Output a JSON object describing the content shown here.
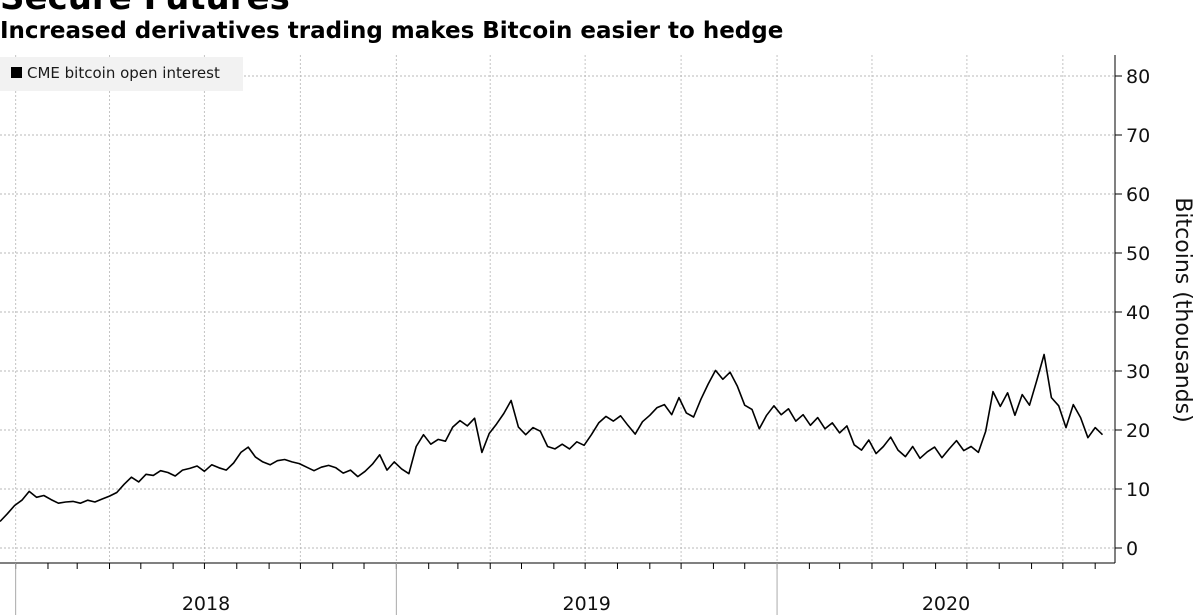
{
  "headline": "Secure Futures",
  "subtitle": "Increased derivatives trading makes Bitcoin easier to hedge",
  "chart_data": {
    "type": "line",
    "title": "Increased derivatives trading makes Bitcoin easier to hedge",
    "xlabel": "",
    "ylabel": "Bitcoins (thousands)",
    "ylim": [
      0,
      80
    ],
    "xlim": [
      "2017-12-17",
      "2020-11-20"
    ],
    "y_ticks": [
      "0",
      "10",
      "20",
      "30",
      "40",
      "50",
      "60",
      "70",
      "80"
    ],
    "x_tick_labels": [
      "2018",
      "2019",
      "2020"
    ],
    "grid": true,
    "legend_position": "top-left",
    "y_axis_side": "right",
    "line_color": "#000000",
    "series": [
      {
        "name": "CME bitcoin open interest",
        "points": [
          [
            "2017-12-17",
            4.5
          ],
          [
            "2017-12-24",
            5.8
          ],
          [
            "2017-12-31",
            7.2
          ],
          [
            "2018-01-07",
            8.1
          ],
          [
            "2018-01-14",
            9.6
          ],
          [
            "2018-01-21",
            8.6
          ],
          [
            "2018-01-28",
            8.9
          ],
          [
            "2018-02-04",
            8.2
          ],
          [
            "2018-02-11",
            7.6
          ],
          [
            "2018-02-18",
            7.8
          ],
          [
            "2018-02-25",
            7.9
          ],
          [
            "2018-03-04",
            7.6
          ],
          [
            "2018-03-11",
            8.1
          ],
          [
            "2018-03-18",
            7.8
          ],
          [
            "2018-03-25",
            8.3
          ],
          [
            "2018-04-01",
            8.8
          ],
          [
            "2018-04-08",
            9.4
          ],
          [
            "2018-04-15",
            10.8
          ],
          [
            "2018-04-22",
            12.0
          ],
          [
            "2018-04-29",
            11.2
          ],
          [
            "2018-05-06",
            12.5
          ],
          [
            "2018-05-13",
            12.3
          ],
          [
            "2018-05-20",
            13.1
          ],
          [
            "2018-05-27",
            12.8
          ],
          [
            "2018-06-03",
            12.2
          ],
          [
            "2018-06-10",
            13.2
          ],
          [
            "2018-06-17",
            13.5
          ],
          [
            "2018-06-24",
            13.9
          ],
          [
            "2018-07-01",
            13.0
          ],
          [
            "2018-07-08",
            14.1
          ],
          [
            "2018-07-15",
            13.6
          ],
          [
            "2018-07-22",
            13.2
          ],
          [
            "2018-07-29",
            14.4
          ],
          [
            "2018-08-05",
            16.2
          ],
          [
            "2018-08-12",
            17.1
          ],
          [
            "2018-08-19",
            15.4
          ],
          [
            "2018-08-26",
            14.6
          ],
          [
            "2018-09-02",
            14.1
          ],
          [
            "2018-09-09",
            14.8
          ],
          [
            "2018-09-16",
            15.0
          ],
          [
            "2018-09-23",
            14.6
          ],
          [
            "2018-09-30",
            14.3
          ],
          [
            "2018-10-07",
            13.7
          ],
          [
            "2018-10-14",
            13.1
          ],
          [
            "2018-10-21",
            13.7
          ],
          [
            "2018-10-28",
            14.0
          ],
          [
            "2018-11-04",
            13.6
          ],
          [
            "2018-11-11",
            12.7
          ],
          [
            "2018-11-18",
            13.2
          ],
          [
            "2018-11-25",
            12.1
          ],
          [
            "2018-12-02",
            13.0
          ],
          [
            "2018-12-09",
            14.2
          ],
          [
            "2018-12-16",
            15.8
          ],
          [
            "2018-12-23",
            13.2
          ],
          [
            "2018-12-30",
            14.6
          ],
          [
            "2019-01-06",
            13.4
          ],
          [
            "2019-01-13",
            12.6
          ],
          [
            "2019-01-20",
            17.2
          ],
          [
            "2019-01-27",
            19.2
          ],
          [
            "2019-02-03",
            17.6
          ],
          [
            "2019-02-10",
            18.4
          ],
          [
            "2019-02-17",
            18.1
          ],
          [
            "2019-02-24",
            20.5
          ],
          [
            "2019-03-03",
            21.6
          ],
          [
            "2019-03-10",
            20.7
          ],
          [
            "2019-03-17",
            22.0
          ],
          [
            "2019-03-24",
            16.2
          ],
          [
            "2019-03-31",
            19.4
          ],
          [
            "2019-04-07",
            21.0
          ],
          [
            "2019-04-14",
            22.8
          ],
          [
            "2019-04-21",
            25.0
          ],
          [
            "2019-04-28",
            20.5
          ],
          [
            "2019-05-05",
            19.2
          ],
          [
            "2019-05-12",
            20.4
          ],
          [
            "2019-05-19",
            19.8
          ],
          [
            "2019-05-26",
            17.2
          ],
          [
            "2019-06-02",
            16.8
          ],
          [
            "2019-06-09",
            17.6
          ],
          [
            "2019-06-16",
            16.8
          ],
          [
            "2019-06-23",
            18.0
          ],
          [
            "2019-06-30",
            17.4
          ],
          [
            "2019-07-07",
            19.2
          ],
          [
            "2019-07-14",
            21.2
          ],
          [
            "2019-07-21",
            22.3
          ],
          [
            "2019-07-28",
            21.5
          ],
          [
            "2019-08-04",
            22.4
          ],
          [
            "2019-08-11",
            20.8
          ],
          [
            "2019-08-18",
            19.3
          ],
          [
            "2019-08-25",
            21.4
          ],
          [
            "2019-09-01",
            22.5
          ],
          [
            "2019-09-08",
            23.8
          ],
          [
            "2019-09-15",
            24.3
          ],
          [
            "2019-09-22",
            22.6
          ],
          [
            "2019-09-29",
            25.5
          ],
          [
            "2019-10-06",
            22.9
          ],
          [
            "2019-10-13",
            22.2
          ],
          [
            "2019-10-20",
            25.2
          ],
          [
            "2019-10-27",
            27.8
          ],
          [
            "2019-11-03",
            30.1
          ],
          [
            "2019-11-10",
            28.6
          ],
          [
            "2019-11-17",
            29.8
          ],
          [
            "2019-11-24",
            27.4
          ],
          [
            "2019-12-01",
            24.2
          ],
          [
            "2019-12-08",
            23.5
          ],
          [
            "2019-12-15",
            20.2
          ],
          [
            "2019-12-22",
            22.5
          ],
          [
            "2019-12-29",
            24.1
          ],
          [
            "2020-01-05",
            22.6
          ],
          [
            "2020-01-12",
            23.6
          ],
          [
            "2020-01-19",
            21.5
          ],
          [
            "2020-01-26",
            22.6
          ],
          [
            "2020-02-02",
            20.8
          ],
          [
            "2020-02-09",
            22.1
          ],
          [
            "2020-02-16",
            20.2
          ],
          [
            "2020-02-23",
            21.2
          ],
          [
            "2020-03-01",
            19.5
          ],
          [
            "2020-03-08",
            20.7
          ],
          [
            "2020-03-15",
            17.5
          ],
          [
            "2020-03-22",
            16.6
          ],
          [
            "2020-03-29",
            18.3
          ],
          [
            "2020-04-05",
            16.0
          ],
          [
            "2020-04-12",
            17.2
          ],
          [
            "2020-04-19",
            18.8
          ],
          [
            "2020-04-26",
            16.6
          ],
          [
            "2020-05-03",
            15.5
          ],
          [
            "2020-05-10",
            17.2
          ],
          [
            "2020-05-17",
            15.2
          ],
          [
            "2020-05-24",
            16.3
          ],
          [
            "2020-05-31",
            17.1
          ],
          [
            "2020-06-07",
            15.3
          ],
          [
            "2020-06-14",
            16.8
          ],
          [
            "2020-06-21",
            18.2
          ],
          [
            "2020-06-28",
            16.5
          ],
          [
            "2020-07-05",
            17.2
          ],
          [
            "2020-07-12",
            16.2
          ],
          [
            "2020-07-19",
            19.8
          ],
          [
            "2020-07-26",
            26.5
          ],
          [
            "2020-08-02",
            24.0
          ],
          [
            "2020-08-09",
            26.3
          ],
          [
            "2020-08-16",
            22.5
          ],
          [
            "2020-08-23",
            26.0
          ],
          [
            "2020-08-30",
            24.2
          ],
          [
            "2020-09-06",
            28.4
          ],
          [
            "2020-09-13",
            32.8
          ],
          [
            "2020-09-20",
            25.5
          ],
          [
            "2020-09-27",
            24.1
          ],
          [
            "2020-10-04",
            20.4
          ],
          [
            "2020-10-11",
            24.3
          ],
          [
            "2020-10-18",
            22.1
          ],
          [
            "2020-10-25",
            18.7
          ],
          [
            "2020-11-01",
            20.4
          ],
          [
            "2020-11-08",
            19.2
          ]
        ]
      }
    ]
  }
}
